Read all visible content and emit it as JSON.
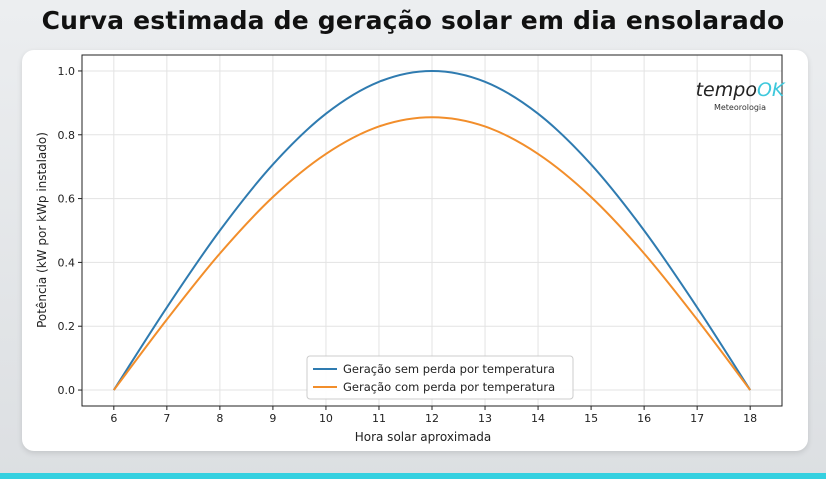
{
  "title": "Curva estimada de geração solar em dia ensolarado",
  "logo": {
    "text_main": "tempo",
    "text_accent": "OK",
    "subtitle": "Meteorologia",
    "accent_color": "#3ec8dc"
  },
  "chart_data": {
    "type": "line",
    "title": "Curva estimada de geração solar em dia ensolarado",
    "xlabel": "Hora solar aproximada",
    "ylabel": "Potência (kW por kWp instalado)",
    "xlim": [
      5.4,
      18.6
    ],
    "ylim": [
      -0.05,
      1.05
    ],
    "xticks": [
      6,
      7,
      8,
      9,
      10,
      11,
      12,
      13,
      14,
      15,
      16,
      17,
      18
    ],
    "yticks": [
      0.0,
      0.2,
      0.4,
      0.6,
      0.8,
      1.0
    ],
    "ytick_labels": [
      "0.0",
      "0.2",
      "0.4",
      "0.6",
      "0.8",
      "1.0"
    ],
    "grid": true,
    "legend_position": "lower-center",
    "x": [
      6,
      7,
      8,
      9,
      10,
      11,
      12,
      13,
      14,
      15,
      16,
      17,
      18
    ],
    "series": [
      {
        "name": "Geração sem perda por temperatura",
        "color": "#2f7bb0",
        "values": [
          0,
          0.259,
          0.5,
          0.707,
          0.866,
          0.966,
          1.0,
          0.966,
          0.866,
          0.707,
          0.5,
          0.259,
          0
        ]
      },
      {
        "name": "Geração com perda por temperatura",
        "color": "#f28e2b",
        "values": [
          0,
          0.221,
          0.428,
          0.605,
          0.74,
          0.826,
          0.855,
          0.826,
          0.74,
          0.605,
          0.428,
          0.221,
          0
        ]
      }
    ]
  }
}
